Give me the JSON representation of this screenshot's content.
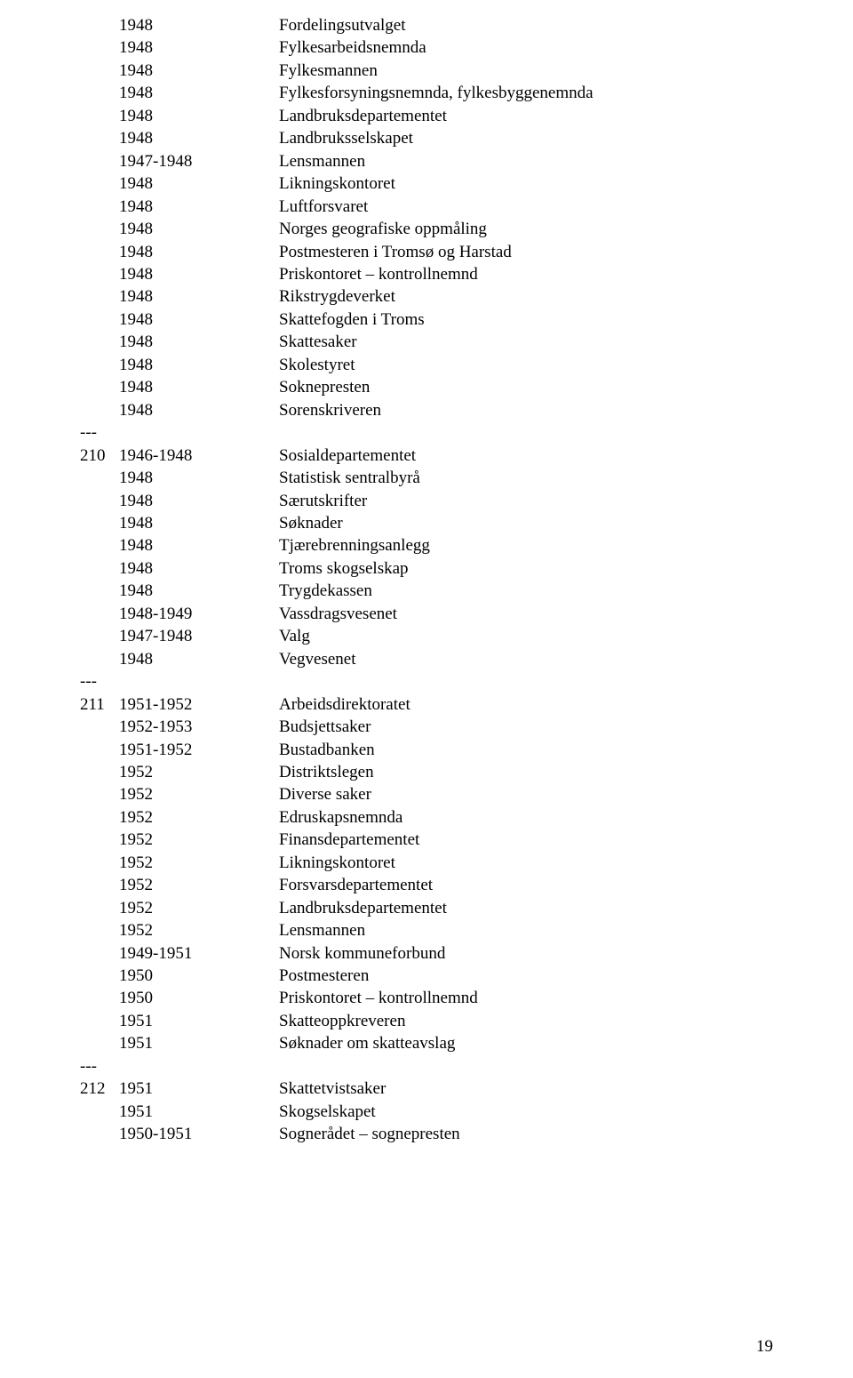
{
  "page_number": "19",
  "separator": "---",
  "groups": [
    {
      "mark": "",
      "rows": [
        {
          "year": "1948",
          "label": "Fordelingsutvalget"
        },
        {
          "year": "1948",
          "label": "Fylkesarbeidsnemnda"
        },
        {
          "year": "1948",
          "label": "Fylkesmannen"
        },
        {
          "year": "1948",
          "label": "Fylkesforsyningsnemnda, fylkesbyggenemnda"
        },
        {
          "year": "1948",
          "label": "Landbruksdepartementet"
        },
        {
          "year": "1948",
          "label": "Landbruksselskapet"
        },
        {
          "year": "1947-1948",
          "label": "Lensmannen"
        },
        {
          "year": "1948",
          "label": "Likningskontoret"
        },
        {
          "year": "1948",
          "label": "Luftforsvaret"
        },
        {
          "year": "1948",
          "label": "Norges geografiske oppmåling"
        },
        {
          "year": "1948",
          "label": "Postmesteren i Tromsø og Harstad"
        },
        {
          "year": "1948",
          "label": "Priskontoret – kontrollnemnd"
        },
        {
          "year": "1948",
          "label": "Rikstrygdeverket"
        },
        {
          "year": "1948",
          "label": "Skattefogden i Troms"
        },
        {
          "year": "1948",
          "label": "Skattesaker"
        },
        {
          "year": "1948",
          "label": "Skolestyret"
        },
        {
          "year": "1948",
          "label": "Soknepresten"
        },
        {
          "year": "1948",
          "label": "Sorenskriveren"
        }
      ]
    },
    {
      "mark": "210",
      "rows": [
        {
          "year": "1946-1948",
          "label": "Sosialdepartementet"
        },
        {
          "year": "1948",
          "label": "Statistisk sentralbyrå"
        },
        {
          "year": "1948",
          "label": "Særutskrifter"
        },
        {
          "year": "1948",
          "label": "Søknader"
        },
        {
          "year": "1948",
          "label": "Tjærebrenningsanlegg"
        },
        {
          "year": "1948",
          "label": "Troms skogselskap"
        },
        {
          "year": "1948",
          "label": "Trygdekassen"
        },
        {
          "year": "1948-1949",
          "label": "Vassdragsvesenet"
        },
        {
          "year": "1947-1948",
          "label": "Valg"
        },
        {
          "year": "1948",
          "label": "Vegvesenet"
        }
      ]
    },
    {
      "mark": "211",
      "rows": [
        {
          "year": "1951-1952",
          "label": "Arbeidsdirektoratet"
        },
        {
          "year": "1952-1953",
          "label": "Budsjettsaker"
        },
        {
          "year": "1951-1952",
          "label": "Bustadbanken"
        },
        {
          "year": "1952",
          "label": "Distriktslegen"
        },
        {
          "year": "1952",
          "label": "Diverse saker"
        },
        {
          "year": "1952",
          "label": "Edruskapsnemnda"
        },
        {
          "year": "1952",
          "label": "Finansdepartementet"
        },
        {
          "year": "1952",
          "label": "Likningskontoret"
        },
        {
          "year": "1952",
          "label": "Forsvarsdepartementet"
        },
        {
          "year": "1952",
          "label": "Landbruksdepartementet"
        },
        {
          "year": "1952",
          "label": "Lensmannen"
        },
        {
          "year": "1949-1951",
          "label": "Norsk kommuneforbund"
        },
        {
          "year": "1950",
          "label": "Postmesteren"
        },
        {
          "year": "1950",
          "label": "Priskontoret – kontrollnemnd"
        },
        {
          "year": "1951",
          "label": "Skatteoppkreveren"
        },
        {
          "year": "1951",
          "label": "Søknader om skatteavslag"
        }
      ]
    },
    {
      "mark": "212",
      "rows": [
        {
          "year": "1951",
          "label": "Skattetvistsaker"
        },
        {
          "year": "1951",
          "label": "Skogselskapet"
        },
        {
          "year": "1950-1951",
          "label": "Sognerådet – sognepresten"
        }
      ]
    }
  ]
}
